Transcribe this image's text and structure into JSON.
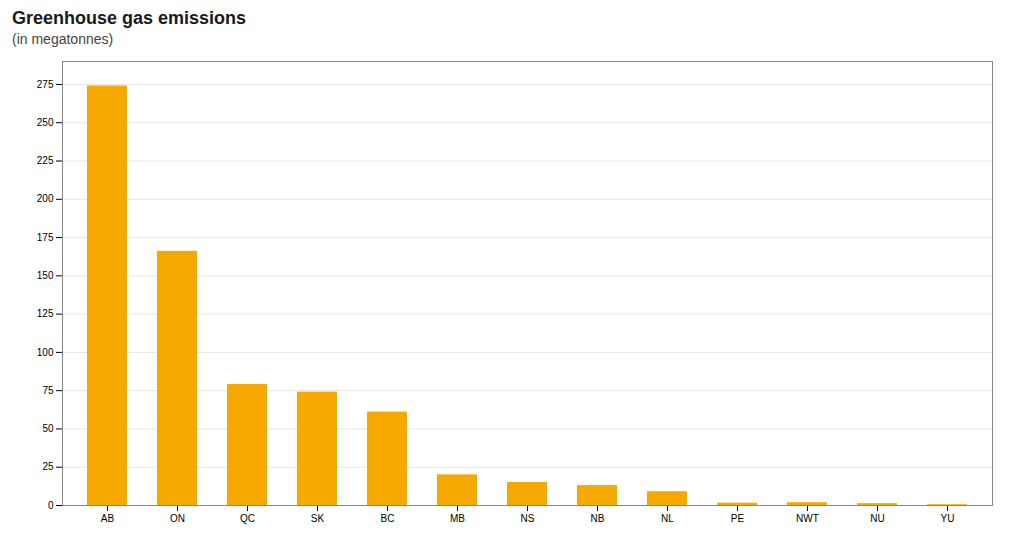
{
  "chart_data": {
    "type": "bar",
    "title": "Greenhouse gas emissions",
    "subtitle": "(in megatonnes)",
    "categories": [
      "AB",
      "ON",
      "QC",
      "SK",
      "BC",
      "MB",
      "NS",
      "NB",
      "NL",
      "PE",
      "NWT",
      "NU",
      "YU"
    ],
    "values": [
      274,
      166,
      79,
      74,
      61,
      20,
      15,
      13,
      9,
      1.5,
      1.8,
      1.2,
      0.5
    ],
    "color": "#F5A800",
    "ylim": [
      0,
      290
    ],
    "yticks": [
      0,
      25,
      50,
      75,
      100,
      125,
      150,
      175,
      200,
      225,
      250,
      275
    ],
    "grid": true
  }
}
